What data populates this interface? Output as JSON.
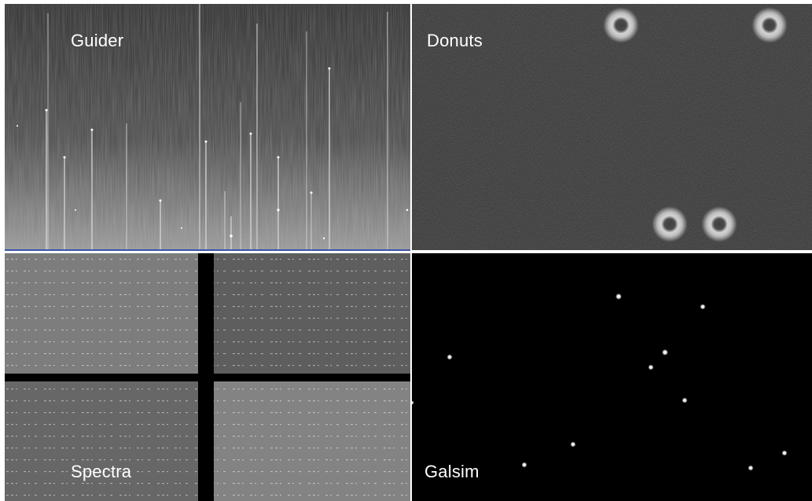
{
  "panels": {
    "guider": {
      "label": "Guider"
    },
    "donuts": {
      "label": "Donuts"
    },
    "spectra": {
      "label": "Spectra"
    },
    "galsim": {
      "label": "Galsim"
    }
  }
}
